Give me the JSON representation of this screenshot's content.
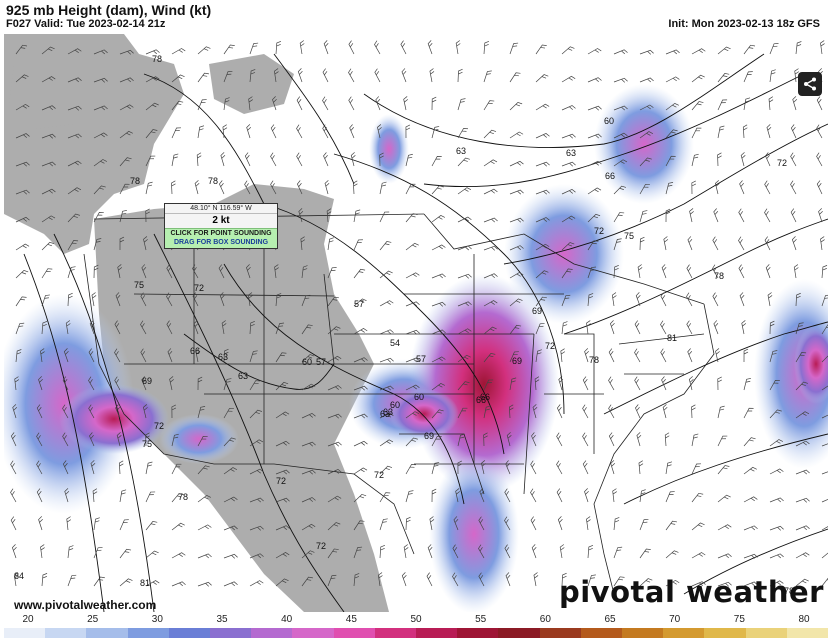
{
  "header": {
    "title": "925 mb Height (dam), Wind (kt)",
    "valid": "F027 Valid: Tue 2023-02-14 21z",
    "init": "Init: Mon 2023-02-13 18z GFS"
  },
  "popup": {
    "coord": "48.10° N 116.59° W",
    "speed": "2 kt",
    "point_button": "CLICK FOR POINT SOUNDING",
    "box_button": "DRAG FOR BOX SOUNDING"
  },
  "contour_labels": [
    "78",
    "78",
    "78",
    "75",
    "72",
    "66",
    "63",
    "63",
    "60",
    "57",
    "69",
    "75",
    "72",
    "78",
    "72",
    "72",
    "60",
    "63",
    "63",
    "66",
    "57",
    "54",
    "57",
    "60",
    "63",
    "69",
    "72",
    "66",
    "69",
    "72",
    "72",
    "78",
    "78",
    "81",
    "66",
    "60",
    "69",
    "63",
    "72",
    "75",
    "78",
    "81",
    "84"
  ],
  "footer": {
    "website": "www.pivotalweather.com",
    "brand": "pivotal weather"
  },
  "legend": {
    "ticks": [
      "20",
      "25",
      "30",
      "35",
      "40",
      "45",
      "50",
      "55",
      "60",
      "65",
      "70",
      "75",
      "80"
    ],
    "colors": [
      "#e8eef8",
      "#c7d7f2",
      "#a5bdea",
      "#7e9ce0",
      "#6a7ed6",
      "#8a6fd0",
      "#b46ad0",
      "#d567c9",
      "#e04fb0",
      "#d2307e",
      "#b81c55",
      "#9e1535",
      "#8b1a25",
      "#9a3a1f",
      "#b45a1c",
      "#c47a20",
      "#d49a30",
      "#e0b84a",
      "#ead27a",
      "#f2e6aa"
    ]
  }
}
